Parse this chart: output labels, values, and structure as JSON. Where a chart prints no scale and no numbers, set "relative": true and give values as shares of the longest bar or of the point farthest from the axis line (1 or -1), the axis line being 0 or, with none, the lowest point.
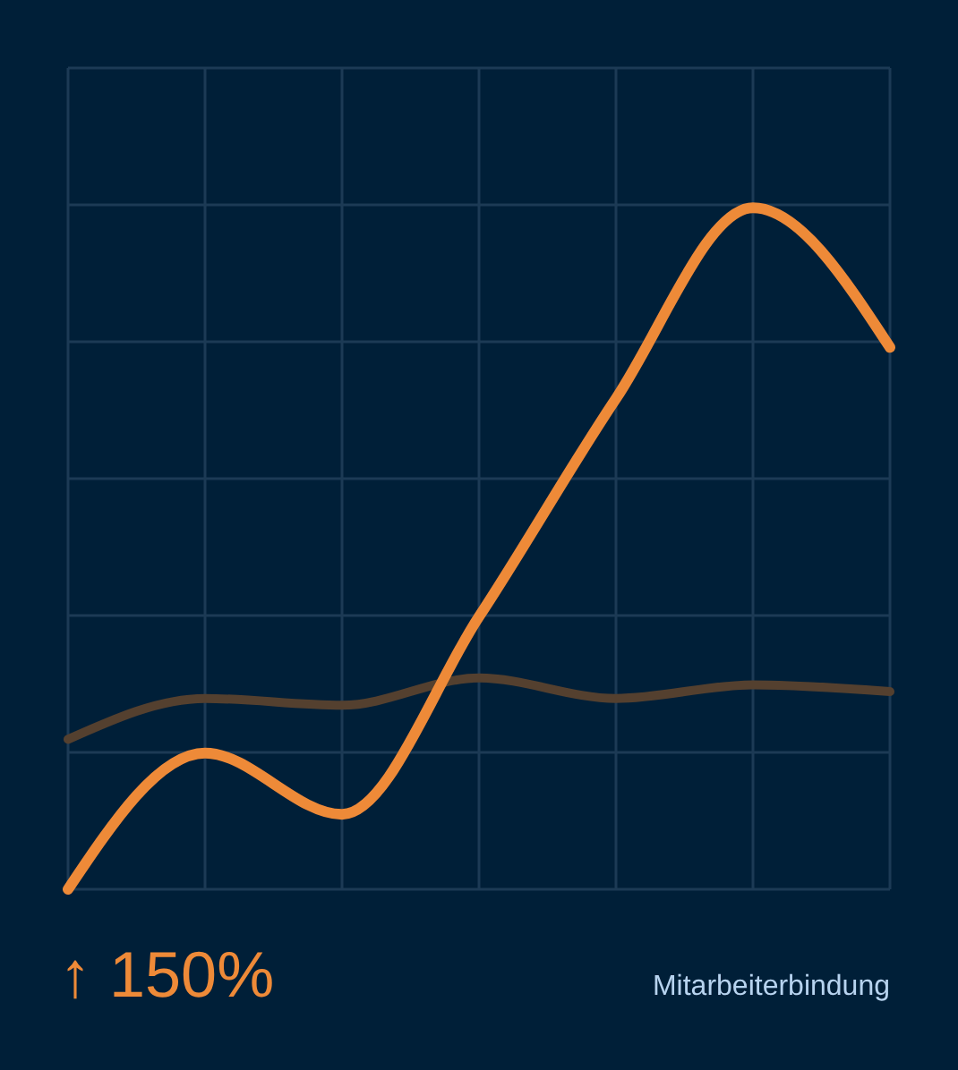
{
  "chart_data": {
    "type": "line",
    "relative": true,
    "grid": true,
    "categories": [
      null,
      null,
      null,
      null,
      null,
      null,
      null
    ],
    "series": [
      {
        "color": "#54402f",
        "values": [
          0.22,
          0.28,
          0.27,
          0.31,
          0.28,
          0.3,
          0.29
        ]
      },
      {
        "color": "#ee8a38",
        "values": [
          0,
          0.2,
          0.11,
          0.4,
          0.72,
          1,
          0.795
        ]
      }
    ],
    "annotations": [
      "↑ 150%",
      "Mitarbeiterbindung"
    ]
  }
}
